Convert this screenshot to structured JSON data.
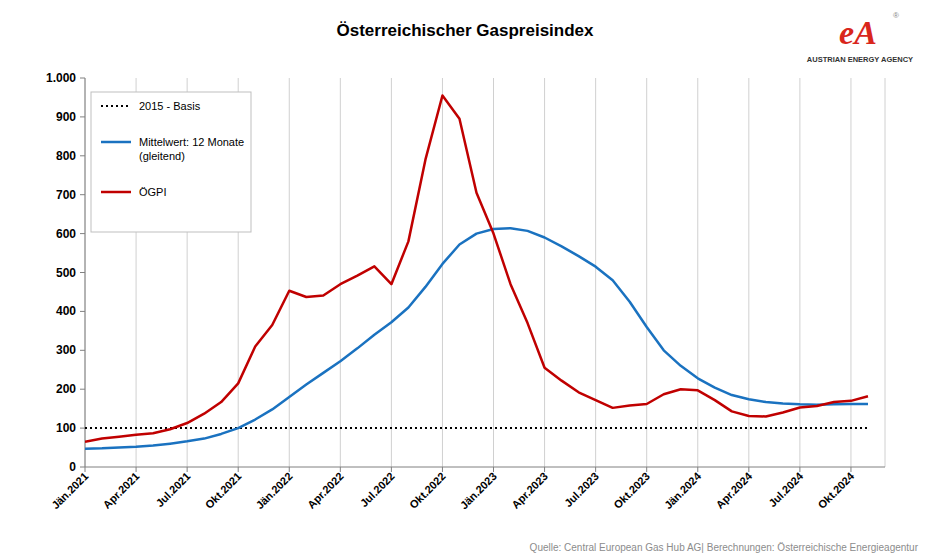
{
  "chart_data": {
    "type": "line",
    "title": "Österreichischer Gaspreisindex",
    "source": "Quelle: Central European Gas Hub AG| Berechnungen: Österreichische Energieagentur",
    "categories": [
      "Jän.2021",
      null,
      null,
      "Apr.2021",
      null,
      null,
      "Jul.2021",
      null,
      null,
      "Okt.2021",
      null,
      null,
      "Jän.2022",
      null,
      null,
      "Apr.2022",
      null,
      null,
      "Jul.2022",
      null,
      null,
      "Okt.2022",
      null,
      null,
      "Jän.2023",
      null,
      null,
      "Apr.2023",
      null,
      null,
      "Jul.2023",
      null,
      null,
      "Okt.2023",
      null,
      null,
      "Jän.2024",
      null,
      null,
      "Apr.2024",
      null,
      null,
      "Jul.2024",
      null,
      null,
      "Okt.2024",
      null
    ],
    "series": [
      {
        "name": "2015 - Basis",
        "color": "#000000",
        "line_style": "dotted",
        "values": [
          100,
          100,
          100,
          100,
          100,
          100,
          100,
          100,
          100,
          100,
          100,
          100,
          100,
          100,
          100,
          100,
          100,
          100,
          100,
          100,
          100,
          100,
          100,
          100,
          100,
          100,
          100,
          100,
          100,
          100,
          100,
          100,
          100,
          100,
          100,
          100,
          100,
          100,
          100,
          100,
          100,
          100,
          100,
          100,
          100,
          100,
          100
        ]
      },
      {
        "name": "Mittelwert: 12 Monate (gleitend)",
        "color": "#1a72c0",
        "line_style": "solid",
        "values": [
          47,
          48,
          50,
          52,
          55,
          60,
          66,
          73,
          85,
          100,
          122,
          148,
          180,
          212,
          242,
          272,
          305,
          340,
          372,
          410,
          463,
          522,
          572,
          600,
          612,
          614,
          607,
          590,
          567,
          542,
          515,
          480,
          425,
          360,
          300,
          260,
          228,
          204,
          185,
          174,
          167,
          163,
          161,
          160,
          161,
          162,
          162
        ]
      },
      {
        "name": "ÖGPI",
        "color": "#c00000",
        "line_style": "solid",
        "values": [
          65,
          73,
          78,
          83,
          87,
          97,
          113,
          137,
          167,
          215,
          310,
          365,
          453,
          437,
          441,
          470,
          492,
          516,
          470,
          580,
          790,
          955,
          895,
          705,
          600,
          470,
          370,
          255,
          222,
          192,
          172,
          152,
          158,
          162,
          187,
          200,
          197,
          172,
          143,
          131,
          130,
          140,
          153,
          157,
          167,
          170,
          182
        ]
      }
    ],
    "ylim": [
      0,
      1000
    ],
    "yticks": [
      0,
      100,
      200,
      300,
      400,
      500,
      600,
      700,
      800,
      900,
      {
        "value": 1000,
        "label": "1.000"
      }
    ],
    "grid": true,
    "legend": "upper left"
  },
  "branding": {
    "mark": "eA",
    "registered": "®",
    "name": "AUSTRIAN ENERGY AGENCY"
  }
}
